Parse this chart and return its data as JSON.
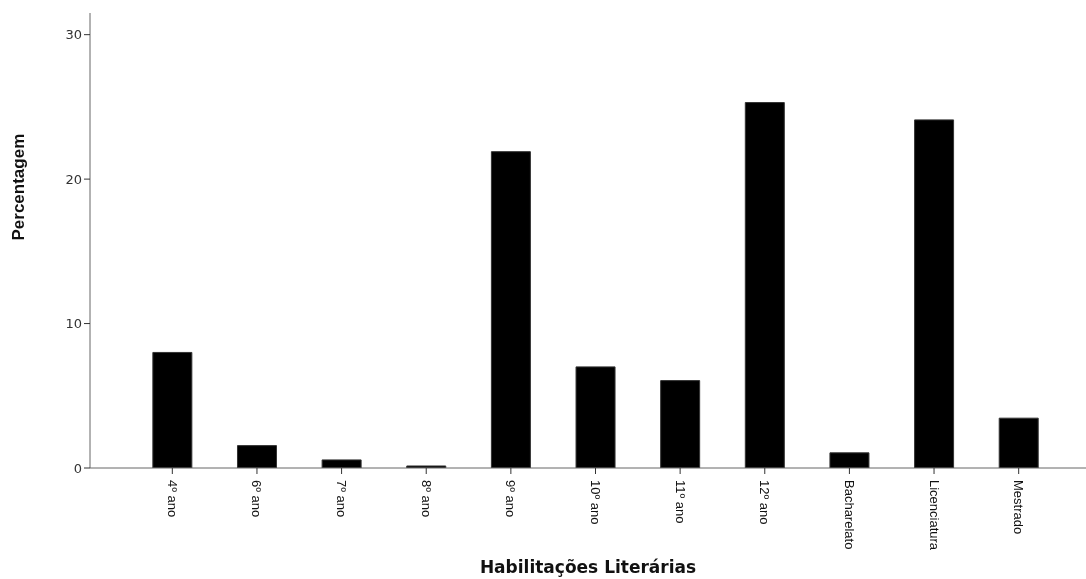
{
  "chart_data": {
    "type": "bar",
    "xlabel": "Habilitações Literárias",
    "ylabel": "Percentagem",
    "categories": [
      "4º ano",
      "6º ano",
      "7º ano",
      "8º ano",
      "9º ano",
      "10º ano",
      "11º ano",
      "12º ano",
      "Bacharelato",
      "Licenciatura",
      "Mestrado"
    ],
    "values": [
      8.0,
      1.55,
      0.56,
      0.14,
      21.9,
      7.0,
      6.05,
      25.3,
      1.05,
      24.1,
      3.45
    ],
    "color": "#000000",
    "ylim": [
      0,
      31.5
    ],
    "yticks": [
      0,
      10,
      20,
      30
    ],
    "grid": false
  }
}
